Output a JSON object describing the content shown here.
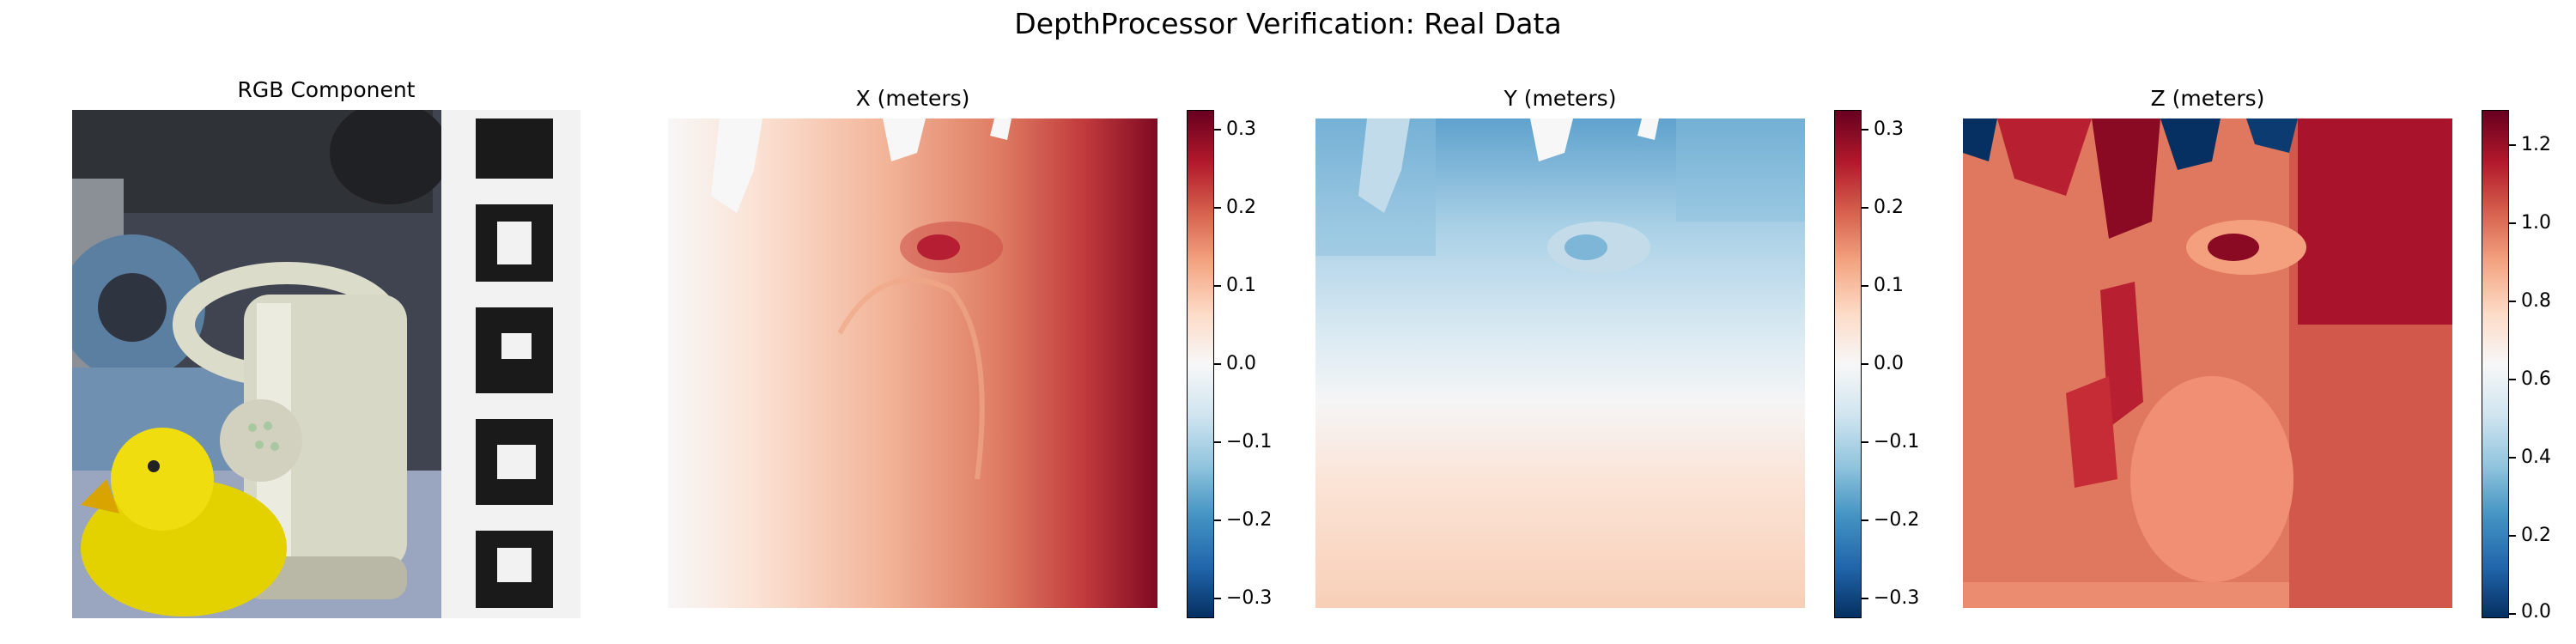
{
  "title": "DepthProcessor Verification: Real Data",
  "chart_data": [
    {
      "type": "image",
      "title": "RGB Component"
    },
    {
      "type": "heatmap",
      "title": "X (meters)",
      "colormap": "RdBu_r",
      "colorbar": {
        "range": [
          -0.32,
          0.32
        ],
        "ticks": [
          0.3,
          0.2,
          0.1,
          0.0,
          -0.1,
          -0.2,
          -0.3
        ],
        "tick_labels": [
          "0.3",
          "0.2",
          "0.1",
          "0.0",
          "−0.1",
          "−0.2",
          "−0.3"
        ]
      },
      "value_range_shown": [
        0.0,
        0.32
      ],
      "gradient": "left-to-right"
    },
    {
      "type": "heatmap",
      "title": "Y (meters)",
      "colormap": "RdBu_r",
      "colorbar": {
        "range": [
          -0.32,
          0.32
        ],
        "ticks": [
          0.3,
          0.2,
          0.1,
          0.0,
          -0.1,
          -0.2,
          -0.3
        ],
        "tick_labels": [
          "0.3",
          "0.2",
          "0.1",
          "0.0",
          "−0.1",
          "−0.2",
          "−0.3"
        ]
      },
      "value_range_shown": [
        -0.2,
        0.08
      ],
      "gradient": "top-to-bottom"
    },
    {
      "type": "heatmap",
      "title": "Z (meters)",
      "colormap": "RdBu_r",
      "colorbar": {
        "range": [
          0.0,
          1.29
        ],
        "ticks": [
          1.2,
          1.0,
          0.8,
          0.6,
          0.4,
          0.2,
          0.0
        ],
        "tick_labels": [
          "1.2",
          "1.0",
          "0.8",
          "0.6",
          "0.4",
          "0.2",
          "0.0"
        ]
      },
      "value_range_shown": [
        0.0,
        1.29
      ]
    }
  ],
  "colors": {
    "rdbu_dark_red": "#67001f",
    "rdbu_red": "#b2182b",
    "rdbu_salmon": "#d6604d",
    "rdbu_peach": "#f4a582",
    "rdbu_light": "#fddbc7",
    "rdbu_white": "#f7f7f7",
    "rdbu_pale_blue": "#d1e5f0",
    "rdbu_light_blue": "#92c5de",
    "rdbu_blue": "#4393c3",
    "rdbu_dark_blue": "#053061"
  }
}
